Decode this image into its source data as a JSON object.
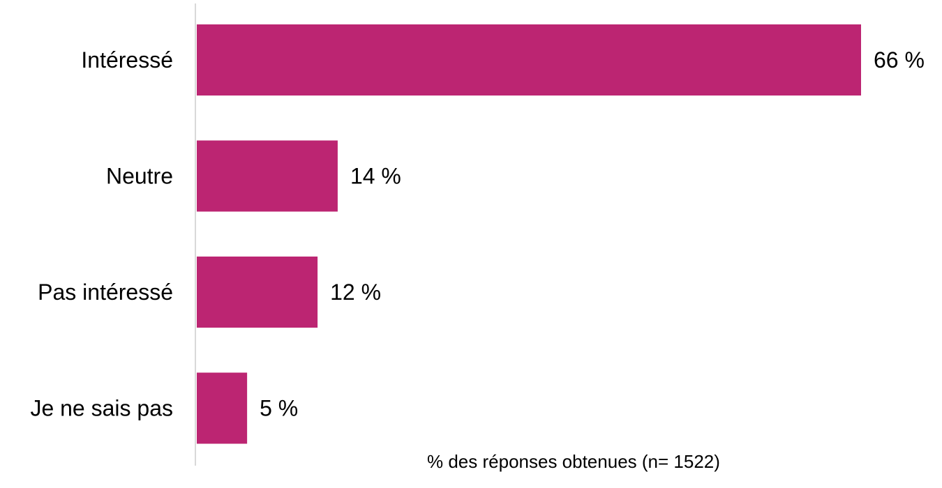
{
  "chart_data": {
    "type": "bar",
    "orientation": "horizontal",
    "categories": [
      "Intéressé",
      "Neutre",
      "Pas intéressé",
      "Je ne sais pas"
    ],
    "values": [
      66,
      14,
      12,
      5
    ],
    "value_labels": [
      "66 %",
      "14 %",
      "12 %",
      "5 %"
    ],
    "xlabel": "% des réponses obtenues (n= 1522)",
    "xlim": [
      0,
      66
    ],
    "bar_color": "#BC2572",
    "axis_color": "#D9D9D9",
    "grid": false,
    "legend": "none"
  }
}
